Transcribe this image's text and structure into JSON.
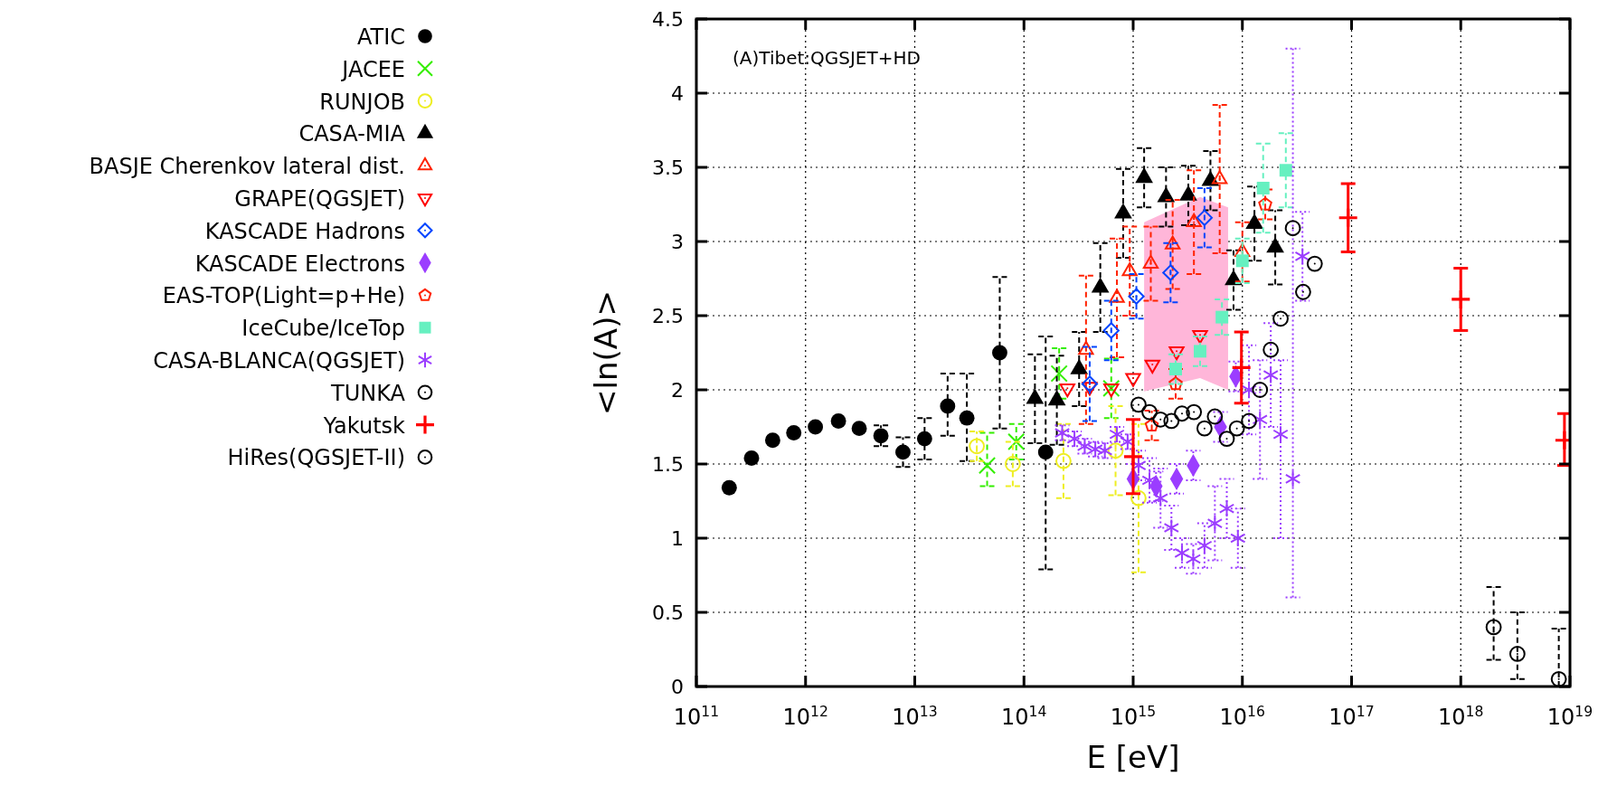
{
  "chart_data": {
    "type": "scatter",
    "xlabel": "E [eV]",
    "ylabel": "<ln(A)>",
    "log": "x",
    "grid": true,
    "legend": "left",
    "annotations": [
      "(A)Tibet:QGSJET+HD"
    ],
    "xlim": [
      100000000000.0,
      1e+19
    ],
    "ylim": [
      0,
      4.5
    ],
    "xticks": [
      {
        "value": 100000000000.0,
        "label": "10$^{11}$"
      },
      {
        "value": 1000000000000.0,
        "label": "10$^{12}$"
      },
      {
        "value": 10000000000000.0,
        "label": "10$^{13}$"
      },
      {
        "value": 100000000000000.0,
        "label": "10$^{14}$"
      },
      {
        "value": 1000000000000000.0,
        "label": "10$^{15}$"
      },
      {
        "value": 1e+16,
        "label": "10$^{16}$"
      },
      {
        "value": 1e+17,
        "label": "10$^{17}$"
      },
      {
        "value": 1e+18,
        "label": "10$^{18}$"
      },
      {
        "value": 1e+19,
        "label": "10$^{19}$"
      }
    ],
    "yticks": [
      0,
      0.5,
      1,
      1.5,
      2,
      2.5,
      3,
      3.5,
      4,
      4.5
    ],
    "series": [
      {
        "type": "area",
        "color": "#ffb6d9",
        "x": [
          1260000000000000.0,
          4100000000000000.0,
          7400000000000000.0
        ],
        "values": [
          null,
          null,
          null
        ],
        "upper": [
          3.13,
          3.3,
          3.23
        ],
        "lower": [
          1.99,
          2.08,
          2.0
        ]
      },
      {
        "name": "ATIC",
        "color": "#000000",
        "marker": "circle",
        "line_style": "dashed",
        "x": [
          200000000000.0,
          320000000000.0,
          500000000000.0,
          780000000000.0,
          1230000000000.0,
          2000000000000.0,
          3100000000000.0,
          4900000000000.0,
          7800000000000.0,
          12300000000000.0,
          20000000000000.0,
          30000000000000.0,
          60000000000000.0,
          158000000000000.0
        ],
        "values": [
          1.34,
          1.54,
          1.66,
          1.71,
          1.75,
          1.79,
          1.74,
          1.69,
          1.58,
          1.67,
          1.89,
          1.81,
          2.25,
          1.58
        ],
        "errors": [
          null,
          null,
          null,
          null,
          null,
          null,
          null,
          0.07,
          0.1,
          [
            1.53,
            1.81
          ],
          [
            1.69,
            2.11
          ],
          [
            1.52,
            2.11
          ],
          [
            1.74,
            2.76
          ],
          [
            0.79,
            2.36
          ]
        ]
      },
      {
        "name": "JACEE",
        "color": "#33ee00",
        "marker": "x",
        "line_style": "dashed",
        "x": [
          46000000000000.0,
          85000000000000.0,
          210000000000000.0,
          630000000000000.0
        ],
        "values": [
          1.49,
          1.65,
          2.11,
          2.01
        ],
        "errors": [
          [
            1.35,
            1.71
          ],
          0.12,
          0.17,
          0.2
        ]
      },
      {
        "name": "RUNJOB",
        "color": "#eeee22",
        "marker": "circle-open",
        "line_style": "dashed",
        "x": [
          37000000000000.0,
          79000000000000.0,
          230000000000000.0,
          690000000000000.0,
          1120000000000000.0
        ],
        "values": [
          1.62,
          1.5,
          1.52,
          1.59,
          1.27
        ],
        "errors": [
          0.1,
          0.15,
          0.25,
          0.3,
          0.5
        ]
      },
      {
        "name": "CASA-MIA",
        "color": "#000000",
        "marker": "triangle",
        "line_style": "dashed",
        "x": [
          126000000000000.0,
          200000000000000.0,
          320000000000000.0,
          500000000000000.0,
          810000000000000.0,
          1260000000000000.0,
          2000000000000000.0,
          3200000000000000.0,
          5100000000000000.0,
          8300000000000000.0,
          1.29e+16,
          2e+16
        ],
        "values": [
          1.94,
          1.93,
          2.14,
          2.69,
          3.19,
          3.43,
          3.3,
          3.31,
          3.41,
          2.74,
          3.12,
          2.96
        ],
        "errors": [
          0.3,
          0.3,
          0.25,
          0.3,
          0.3,
          0.2,
          0.2,
          0.2,
          0.2,
          0.2,
          0.25,
          0.25
        ]
      },
      {
        "name": "BASJE Cherenkov lateral dist.",
        "color": "#ff2200",
        "marker": "triangle-open",
        "line_style": "dashed",
        "x": [
          370000000000000.0,
          710000000000000.0,
          930000000000000.0,
          1450000000000000.0,
          2300000000000000.0,
          3600000000000000.0,
          6200000000000000.0,
          1e+16
        ],
        "values": [
          2.27,
          2.62,
          2.8,
          2.85,
          2.98,
          3.13,
          3.42,
          2.93
        ],
        "errors": [
          0.5,
          0.4,
          0.3,
          0.25,
          0.3,
          0.35,
          0.5,
          0.2
        ]
      },
      {
        "name": "GRAPE(QGSJET)",
        "color": "#ff0000",
        "marker": "triangle-down-open",
        "x": [
          250000000000000.0,
          400000000000000.0,
          630000000000000.0,
          1000000000000000.0,
          1500000000000000.0,
          2500000000000000.0,
          4100000000000000.0
        ],
        "values": [
          2.01,
          2.02,
          2.01,
          2.08,
          2.17,
          2.26,
          2.37
        ]
      },
      {
        "name": "KASCADE Hadrons",
        "color": "#0044ff",
        "marker": "diamond-open",
        "line_style": "dashed",
        "x": [
          400000000000000.0,
          630000000000000.0,
          1070000000000000.0,
          2200000000000000.0,
          4500000000000000.0
        ],
        "values": [
          2.04,
          2.4,
          2.63,
          2.79,
          3.16
        ],
        "errors": [
          0.25,
          0.2,
          0.15,
          0.2,
          0.2
        ]
      },
      {
        "name": "KASCADE Electrons",
        "color": "#9b3dff",
        "marker": "diamond",
        "line_style": "dotted",
        "x": [
          1000000000000000.0,
          1620000000000000.0,
          2500000000000000.0,
          3550000000000000.0,
          6300000000000000.0,
          8700000000000000.0
        ],
        "values": [
          1.4,
          1.35,
          1.4,
          1.49,
          1.75,
          2.09
        ],
        "errors": [
          0.1,
          0.1,
          0.1,
          0.1,
          0.1,
          0.1
        ]
      },
      {
        "name": "EAS-TOP(Light=p+He)",
        "color": "#ff2200",
        "marker": "circle-pentagon-open",
        "line_style": "dashed",
        "x": [
          1480000000000000.0,
          2450000000000000.0,
          1.62e+16
        ],
        "values": [
          1.76,
          2.04,
          3.25
        ],
        "errors": [
          0.1,
          0.1,
          0.1
        ]
      },
      {
        "name": "IceCube/IceTop",
        "color": "#66f0c0",
        "marker": "square",
        "line_style": "dashed",
        "x": [
          2450000000000000.0,
          4100000000000000.0,
          6500000000000000.0,
          1e+16,
          1.55e+16,
          2.5e+16
        ],
        "values": [
          2.14,
          2.26,
          2.49,
          2.87,
          3.36,
          3.48
        ],
        "errors": [
          0.1,
          0.1,
          0.12,
          0.15,
          0.3,
          0.25
        ]
      },
      {
        "name": "CASA-BLANCA(QGSJET)",
        "color": "#9b3dff",
        "marker": "cross",
        "line_style": "dotted",
        "x": [
          224000000000000.0,
          290000000000000.0,
          360000000000000.0,
          450000000000000.0,
          550000000000000.0,
          710000000000000.0,
          890000000000000.0,
          1120000000000000.0,
          1410000000000000.0,
          1780000000000000.0,
          2240000000000000.0,
          2800000000000000.0,
          3550000000000000.0,
          4500000000000000.0,
          5600000000000000.0,
          7200000000000000.0,
          9100000000000000.0,
          1.15e+16,
          1.45e+16,
          1.82e+16,
          2.24e+16,
          2.9e+16,
          3.55e+16
        ],
        "values": [
          1.71,
          1.67,
          1.62,
          1.6,
          1.59,
          1.7,
          1.65,
          1.49,
          1.39,
          1.27,
          1.07,
          0.9,
          0.86,
          0.95,
          1.1,
          1.2,
          1.0,
          2.0,
          1.8,
          2.1,
          1.7,
          1.4,
          2.9
        ],
        "errors": [
          0.05,
          0.05,
          0.05,
          0.05,
          0.05,
          0.05,
          0.05,
          0.1,
          0.15,
          0.2,
          0.15,
          0.1,
          0.1,
          0.15,
          0.25,
          0.2,
          0.2,
          0.3,
          0.4,
          0.35,
          [
            1.0,
            2.2
          ],
          [
            0.6,
            4.3
          ],
          0.3
        ]
      },
      {
        "name": "TUNKA",
        "color": "#000000",
        "marker": "circle-open",
        "line_style": "dashed",
        "x": [
          1120000000000000.0,
          1410000000000000.0,
          1780000000000000.0,
          2240000000000000.0,
          2800000000000000.0,
          3600000000000000.0,
          4500000000000000.0,
          5600000000000000.0,
          7200000000000000.0,
          8900000000000000.0,
          1.15e+16,
          1.45e+16,
          1.82e+16,
          2.24e+16,
          2.9e+16,
          3.6e+16,
          4.6e+16
        ],
        "values": [
          1.9,
          1.85,
          1.8,
          1.79,
          1.84,
          1.85,
          1.74,
          1.82,
          1.67,
          1.74,
          1.79,
          2.0,
          2.27,
          2.48,
          3.09,
          2.66,
          2.85
        ]
      },
      {
        "name": "Yakutsk",
        "color": "#ff0000",
        "marker": "cross-plus",
        "line_style": "solid",
        "x": [
          1000000000000000.0,
          9800000000000000.0,
          9.3e+16,
          1e+18,
          8.9e+18
        ],
        "values": [
          1.55,
          2.15,
          3.16,
          2.61,
          1.66
        ],
        "errors": [
          0.25,
          0.24,
          0.23,
          [
            2.4,
            2.82
          ],
          [
            1.49,
            1.84
          ]
        ]
      },
      {
        "name": "HiRes(QGSJET-II)",
        "color": "#000000",
        "marker": "circle-open",
        "line_style": "dashed",
        "x": [
          2e+18,
          3.3e+18,
          7.9e+18
        ],
        "values": [
          0.4,
          0.22,
          0.05
        ],
        "errors": [
          [
            0.18,
            0.67
          ],
          [
            0.05,
            0.5
          ],
          [
            0,
            0.39
          ]
        ]
      }
    ]
  }
}
